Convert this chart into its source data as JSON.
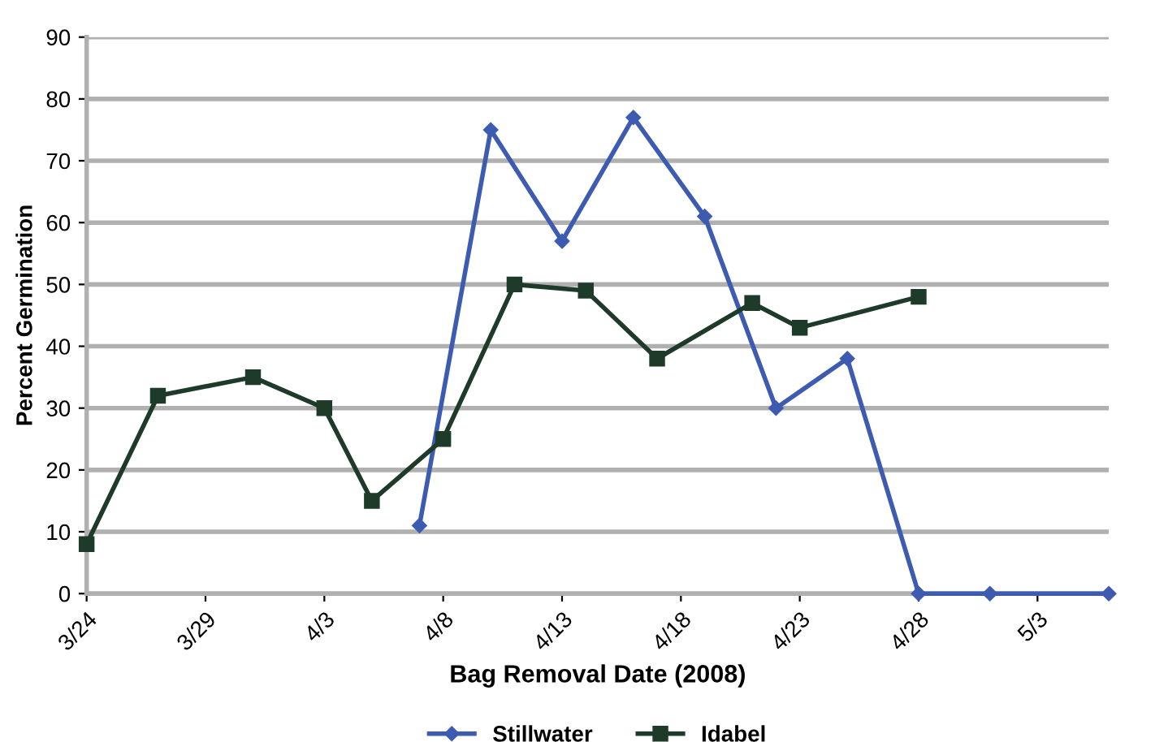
{
  "chart_data": {
    "type": "line",
    "xlabel": "Bag Removal Date (2008)",
    "ylabel": "Percent Germination",
    "xlim": [
      "2008-03-24",
      "2008-05-06"
    ],
    "xticks": [
      {
        "value": "2008-03-24",
        "label": "3/24"
      },
      {
        "value": "2008-03-29",
        "label": "3/29"
      },
      {
        "value": "2008-04-03",
        "label": "4/3"
      },
      {
        "value": "2008-04-08",
        "label": "4/8"
      },
      {
        "value": "2008-04-13",
        "label": "4/13"
      },
      {
        "value": "2008-04-18",
        "label": "4/18"
      },
      {
        "value": "2008-04-23",
        "label": "4/23"
      },
      {
        "value": "2008-04-28",
        "label": "4/28"
      },
      {
        "value": "2008-05-03",
        "label": "5/3"
      }
    ],
    "ylim": [
      0,
      90
    ],
    "yticks": [
      0,
      10,
      20,
      30,
      40,
      50,
      60,
      70,
      80,
      90
    ],
    "grid": "y",
    "legend": "bottom",
    "series": [
      {
        "name": "Stillwater",
        "color": "#3d5bb0",
        "marker": "diamond",
        "x": [
          "2008-04-07",
          "2008-04-10",
          "2008-04-13",
          "2008-04-16",
          "2008-04-19",
          "2008-04-22",
          "2008-04-25",
          "2008-04-28",
          "2008-05-01",
          "2008-05-06"
        ],
        "values": [
          11,
          75,
          57,
          77,
          61,
          30,
          38,
          0,
          0,
          0
        ]
      },
      {
        "name": "Idabel",
        "color": "#1e3a28",
        "marker": "square",
        "x": [
          "2008-03-24",
          "2008-03-27",
          "2008-03-31",
          "2008-04-03",
          "2008-04-05",
          "2008-04-08",
          "2008-04-11",
          "2008-04-14",
          "2008-04-17",
          "2008-04-21",
          "2008-04-23",
          "2008-04-28"
        ],
        "values": [
          8,
          32,
          35,
          30,
          15,
          25,
          50,
          49,
          38,
          47,
          43,
          48
        ]
      }
    ]
  }
}
